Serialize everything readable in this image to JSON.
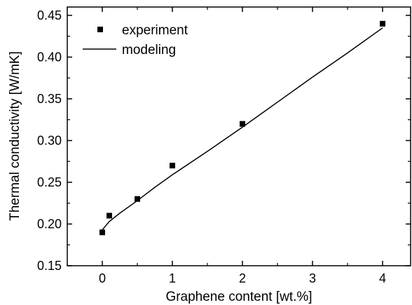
{
  "chart_data": {
    "type": "scatter",
    "xlabel": "Graphene content [wt.%]",
    "ylabel": "Thermal conductivity [W/mK]",
    "xlim": [
      -0.5,
      4.4
    ],
    "ylim": [
      0.15,
      0.46
    ],
    "x_ticks": [
      0,
      1,
      2,
      3,
      4
    ],
    "x_tick_labels": [
      "0",
      "1",
      "2",
      "3",
      "4"
    ],
    "y_ticks": [
      0.15,
      0.2,
      0.25,
      0.3,
      0.35,
      0.4,
      0.45
    ],
    "y_tick_labels": [
      "0.15",
      "0.20",
      "0.25",
      "0.30",
      "0.35",
      "0.40",
      "0.45"
    ],
    "grid": false,
    "legend_position": "top-left",
    "series": [
      {
        "name": "experiment",
        "kind": "scatter",
        "marker": "square",
        "color": "#000000",
        "x": [
          0,
          0.1,
          0.5,
          1,
          2,
          4
        ],
        "y": [
          0.19,
          0.21,
          0.23,
          0.27,
          0.32,
          0.44
        ]
      },
      {
        "name": "modeling",
        "kind": "line",
        "color": "#000000",
        "x": [
          0,
          0.1,
          0.25,
          0.5,
          0.75,
          1,
          1.5,
          2,
          2.5,
          3,
          3.5,
          4
        ],
        "y": [
          0.193,
          0.203,
          0.213,
          0.228,
          0.244,
          0.259,
          0.287,
          0.316,
          0.346,
          0.376,
          0.405,
          0.435
        ]
      }
    ]
  }
}
